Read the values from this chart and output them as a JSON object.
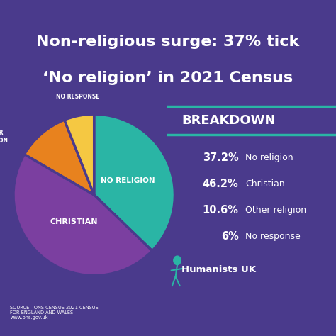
{
  "title_line1": "Non-religious surge: 37% tick",
  "title_line2": "‘No religion’ in 2021 Census",
  "background_color": "#4a3a8c",
  "teal_color": "#2ab5a5",
  "pie_slices": [
    37.2,
    46.2,
    10.6,
    6.0
  ],
  "pie_colors": [
    "#2ab5a5",
    "#7b3fa0",
    "#e8821e",
    "#f5c842"
  ],
  "breakdown_title": "BREAKDOWN",
  "breakdown_items": [
    {
      "pct": "37.2%",
      "label": "No religion"
    },
    {
      "pct": "46.2%",
      "label": "Christian"
    },
    {
      "pct": "10.6%",
      "label": "Other religion"
    },
    {
      "pct": "6%",
      "label": "No response"
    }
  ],
  "source_text": "SOURCE:  ONS CENSUS 2021 CENSUS\nFOR ENGLAND AND WALES\nwww.ons.gov.uk",
  "humanists_text": "Humanists UK",
  "wedge_linewidth": 2.5,
  "wedge_linecolor": "#4a3a8c"
}
